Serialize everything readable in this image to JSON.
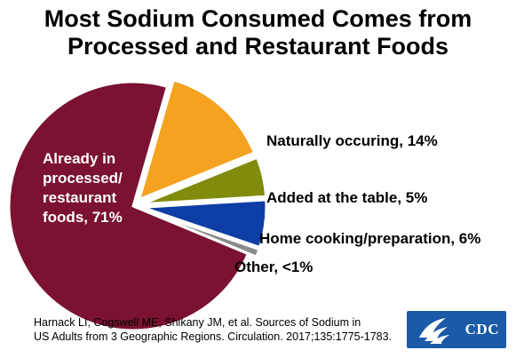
{
  "title": {
    "line1": "Most Sodium Consumed Comes from",
    "line2": "Processed and Restaurant Foods"
  },
  "chart_data": {
    "type": "pie",
    "title": "Most Sodium Consumed Comes from Processed and Restaurant Foods",
    "slices": [
      {
        "label_lines": [
          "Already in",
          "processed/",
          "restaurant",
          "foods, 71%"
        ],
        "value": 71,
        "color": "#7b1232"
      },
      {
        "label_lines": [
          "Naturally occuring, 14%"
        ],
        "value": 14,
        "color": "#f4a21f"
      },
      {
        "label_lines": [
          "Added at the table, 5%"
        ],
        "value": 5,
        "color": "#7f8c0c"
      },
      {
        "label_lines": [
          "Home cooking/preparation, 6%"
        ],
        "value": 6,
        "color": "#0d3ea5"
      },
      {
        "label_lines": [
          "Other, <1%"
        ],
        "value": 1,
        "color": "#8a8a8a"
      }
    ]
  },
  "citation": {
    "line1": "Harnack LI, Cogswell ME, Shikany JM, et al. Sources of Sodium in",
    "line2": "US Adults from 3 Geographic Regions. Circulation. 2017;135:1775-1783."
  },
  "logo": {
    "text": "CDC",
    "color": "#1a5aa6"
  }
}
